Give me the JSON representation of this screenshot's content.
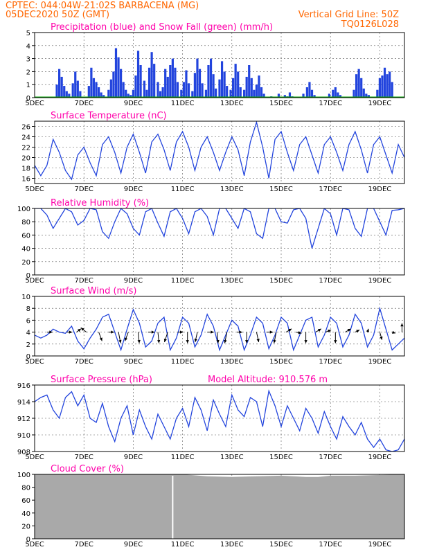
{
  "header": {
    "line1": "CPTEC:   044:04W-21:02S   BARBACENA (MG)",
    "line2": "05DEC2020 50Z (GMT)",
    "grid_note": "Vertical Grid Line: 50Z",
    "code": "TQ0126L028",
    "color": "#ff6600"
  },
  "colors": {
    "title": "#ff00aa",
    "line": "#2244dd",
    "precip": "#2244dd",
    "snow": "#00aa00",
    "cloud": "#a9a9a9",
    "wind_arrow": "#000000"
  },
  "x_ticks": [
    "5DEC",
    "7DEC",
    "9DEC",
    "11DEC",
    "13DEC",
    "15DEC",
    "17DEC",
    "19DEC"
  ],
  "panels": {
    "precip": {
      "title": "Precipitation (blue) and Snow Fall (green) (mm/h)",
      "yticks": [
        "0",
        "1",
        "2",
        "3",
        "4",
        "5"
      ]
    },
    "temp": {
      "title": "Surface Temperature (nC)",
      "yticks": [
        "16",
        "18",
        "20",
        "22",
        "24",
        "26"
      ]
    },
    "rh": {
      "title": "Relative Humidity (%)",
      "yticks": [
        "0",
        "20",
        "40",
        "60",
        "80",
        "100"
      ]
    },
    "wind": {
      "title": "Surface Wind (m/s)",
      "yticks": [
        "0",
        "2",
        "4",
        "6",
        "8",
        "10"
      ]
    },
    "pressure": {
      "title": "Surface Pressure (hPa)",
      "subtitle": "Model Altitude: 910.576 m",
      "yticks": [
        "908",
        "910",
        "912",
        "914",
        "916"
      ]
    },
    "cloud": {
      "title": "Cloud Cover (%)",
      "yticks": [
        "0",
        "20",
        "40",
        "60",
        "80",
        "100"
      ]
    }
  },
  "chart_data": [
    {
      "type": "bar",
      "title": "Precipitation (blue) and Snow Fall (green) (mm/h)",
      "x_unit": "days since 05DEC2020 00Z",
      "ylim": [
        0,
        5
      ],
      "series": [
        {
          "name": "Precipitation",
          "x": [
            0.9,
            1.0,
            1.1,
            1.2,
            1.3,
            1.4,
            1.55,
            1.65,
            1.75,
            1.85,
            2.2,
            2.3,
            2.4,
            2.5,
            2.6,
            2.7,
            2.8,
            3.0,
            3.1,
            3.2,
            3.3,
            3.4,
            3.5,
            3.6,
            3.7,
            3.8,
            3.9,
            4.0,
            4.1,
            4.2,
            4.3,
            4.45,
            4.55,
            4.65,
            4.75,
            4.85,
            5.0,
            5.1,
            5.2,
            5.3,
            5.4,
            5.5,
            5.6,
            5.7,
            5.8,
            5.95,
            6.05,
            6.15,
            6.25,
            6.4,
            6.5,
            6.6,
            6.7,
            6.8,
            6.95,
            7.05,
            7.15,
            7.25,
            7.35,
            7.5,
            7.6,
            7.7,
            7.8,
            7.95,
            8.05,
            8.15,
            8.25,
            8.35,
            8.5,
            8.6,
            8.7,
            8.8,
            8.9,
            9.0,
            9.1,
            9.2,
            9.3,
            9.6,
            9.9,
            10.15,
            10.25,
            10.35,
            10.45,
            10.9,
            11.05,
            11.15,
            11.25,
            11.35,
            11.95,
            12.1,
            12.2,
            12.3,
            12.4,
            12.95,
            13.05,
            13.15,
            13.25,
            13.35,
            13.45,
            13.55,
            13.9,
            14.0,
            14.1,
            14.2,
            14.3,
            14.4,
            14.5
          ],
          "values": [
            1.0,
            2.2,
            1.6,
            0.9,
            0.5,
            0.3,
            1.1,
            2.0,
            1.3,
            0.5,
            0.9,
            2.3,
            1.5,
            1.2,
            0.8,
            0.4,
            0.2,
            0.6,
            1.4,
            2.0,
            3.8,
            3.1,
            2.2,
            1.2,
            0.6,
            0.3,
            0.2,
            0.6,
            1.7,
            3.6,
            2.5,
            1.3,
            0.6,
            2.3,
            3.5,
            2.6,
            1.2,
            0.5,
            0.8,
            2.2,
            1.6,
            2.5,
            3.0,
            2.3,
            1.2,
            0.6,
            1.2,
            2.1,
            1.1,
            0.5,
            1.9,
            3.0,
            2.2,
            1.1,
            0.6,
            2.5,
            3.0,
            1.8,
            0.7,
            1.4,
            2.8,
            2.0,
            0.9,
            0.6,
            1.5,
            2.6,
            2.0,
            0.8,
            0.6,
            1.6,
            2.5,
            1.5,
            0.6,
            1.0,
            1.7,
            0.8,
            0.3,
            0.1,
            0.3,
            0.2,
            0.1,
            0.4,
            0.1,
            0.3,
            0.8,
            1.2,
            0.6,
            0.2,
            0.3,
            0.6,
            0.8,
            0.4,
            0.2,
            0.6,
            1.8,
            2.2,
            1.5,
            0.7,
            0.3,
            0.2,
            0.6,
            1.5,
            1.7,
            2.3,
            1.8,
            2.0,
            1.2
          ]
        },
        {
          "name": "Snow Fall",
          "x": [
            0.0,
            15.0
          ],
          "values": [
            0,
            0
          ]
        }
      ]
    },
    {
      "type": "line",
      "title": "Surface Temperature (nC)",
      "ylim": [
        15,
        27
      ],
      "series": [
        {
          "name": "Temperature",
          "x": [
            0,
            0.25,
            0.5,
            0.75,
            1.0,
            1.25,
            1.5,
            1.75,
            2.0,
            2.25,
            2.5,
            2.75,
            3.0,
            3.25,
            3.5,
            3.75,
            4.0,
            4.25,
            4.5,
            4.75,
            5.0,
            5.25,
            5.5,
            5.75,
            6.0,
            6.25,
            6.5,
            6.75,
            7.0,
            7.25,
            7.5,
            7.75,
            8.0,
            8.25,
            8.5,
            8.75,
            9.0,
            9.25,
            9.5,
            9.75,
            10.0,
            10.25,
            10.5,
            10.75,
            11.0,
            11.25,
            11.5,
            11.75,
            12.0,
            12.25,
            12.5,
            12.75,
            13.0,
            13.25,
            13.5,
            13.75,
            14.0,
            14.25,
            14.5,
            14.75,
            15.0
          ],
          "values": [
            18.5,
            16.5,
            18.5,
            23.5,
            21.0,
            17.5,
            15.8,
            20.5,
            22.0,
            19.0,
            16.5,
            22.5,
            24.0,
            21.0,
            17.0,
            22.0,
            24.5,
            21.0,
            17.0,
            23.0,
            24.5,
            21.5,
            17.5,
            23.0,
            25.0,
            22.0,
            17.5,
            22.0,
            24.0,
            21.0,
            17.5,
            21.0,
            24.0,
            21.5,
            16.5,
            23.0,
            26.8,
            22.0,
            16.0,
            23.5,
            25.0,
            21.0,
            17.5,
            22.5,
            24.0,
            20.5,
            17.0,
            22.5,
            24.0,
            21.0,
            17.5,
            22.5,
            25.0,
            21.5,
            17.0,
            22.5,
            24.0,
            20.5,
            17.0,
            22.5,
            20.0
          ]
        }
      ]
    },
    {
      "type": "line",
      "title": "Relative Humidity (%)",
      "ylim": [
        0,
        100
      ],
      "series": [
        {
          "name": "Relative Humidity",
          "x": [
            0,
            0.25,
            0.5,
            0.75,
            1.0,
            1.25,
            1.5,
            1.75,
            2.0,
            2.25,
            2.5,
            2.75,
            3.0,
            3.25,
            3.5,
            3.75,
            4.0,
            4.25,
            4.5,
            4.75,
            5.0,
            5.25,
            5.5,
            5.75,
            6.0,
            6.25,
            6.5,
            6.75,
            7.0,
            7.25,
            7.5,
            7.75,
            8.0,
            8.25,
            8.5,
            8.75,
            9.0,
            9.25,
            9.5,
            9.75,
            10.0,
            10.25,
            10.5,
            10.75,
            11.0,
            11.25,
            11.5,
            11.75,
            12.0,
            12.25,
            12.5,
            12.75,
            13.0,
            13.25,
            13.5,
            13.75,
            14.0,
            14.25,
            14.5,
            14.75,
            15.0
          ],
          "values": [
            100,
            100,
            90,
            70,
            85,
            100,
            95,
            75,
            82,
            100,
            98,
            65,
            55,
            80,
            100,
            92,
            70,
            60,
            95,
            100,
            78,
            58,
            95,
            100,
            85,
            62,
            95,
            100,
            88,
            60,
            100,
            100,
            85,
            70,
            100,
            95,
            62,
            55,
            100,
            100,
            80,
            78,
            98,
            100,
            85,
            40,
            70,
            100,
            92,
            60,
            100,
            98,
            70,
            58,
            100,
            100,
            80,
            60,
            97,
            98,
            100
          ]
        }
      ]
    },
    {
      "type": "line",
      "title": "Surface Wind (m/s)",
      "ylim": [
        0,
        10
      ],
      "series": [
        {
          "name": "Wind speed",
          "x": [
            0,
            0.25,
            0.5,
            0.75,
            1.0,
            1.25,
            1.5,
            1.75,
            2.0,
            2.25,
            2.5,
            2.75,
            3.0,
            3.25,
            3.5,
            3.75,
            4.0,
            4.25,
            4.5,
            4.75,
            5.0,
            5.25,
            5.5,
            5.75,
            6.0,
            6.25,
            6.5,
            6.75,
            7.0,
            7.25,
            7.5,
            7.75,
            8.0,
            8.25,
            8.5,
            8.75,
            9.0,
            9.25,
            9.5,
            9.75,
            10.0,
            10.25,
            10.5,
            10.75,
            11.0,
            11.25,
            11.5,
            11.75,
            12.0,
            12.25,
            12.5,
            12.75,
            13.0,
            13.25,
            13.5,
            13.75,
            14.0,
            14.25,
            14.5,
            14.75,
            15.0
          ],
          "values": [
            3.5,
            3.0,
            3.5,
            4.5,
            4.0,
            3.8,
            5.0,
            2.5,
            1.2,
            3.0,
            4.5,
            6.5,
            7.0,
            4.0,
            1.0,
            4.5,
            7.8,
            5.5,
            1.5,
            2.5,
            5.5,
            6.5,
            1.0,
            3.0,
            6.5,
            5.5,
            1.5,
            3.5,
            7.0,
            5.0,
            1.0,
            3.5,
            6.0,
            5.0,
            1.0,
            3.5,
            6.5,
            5.5,
            1.2,
            3.5,
            6.5,
            5.5,
            1.0,
            3.5,
            6.0,
            6.5,
            1.5,
            3.5,
            6.5,
            5.5,
            1.5,
            3.5,
            7.0,
            5.5,
            1.5,
            3.5,
            8.0,
            4.5,
            1.0,
            2.0,
            3.0
          ]
        }
      ],
      "wind_vectors": [
        {
          "x": 0.5,
          "u": 0.5,
          "v": 0
        },
        {
          "x": 1.3,
          "u": 0.5,
          "v": 0
        },
        {
          "x": 1.7,
          "u": 0.4,
          "v": 0.3
        },
        {
          "x": 2.1,
          "u": -0.5,
          "v": 0.4
        },
        {
          "x": 2.6,
          "u": 0.3,
          "v": -0.8
        },
        {
          "x": 3.0,
          "u": 0.5,
          "v": 0
        },
        {
          "x": 3.4,
          "u": 0.2,
          "v": -1
        },
        {
          "x": 3.8,
          "u": -0.3,
          "v": -0.8
        },
        {
          "x": 4.2,
          "u": 0.1,
          "v": -1
        },
        {
          "x": 4.6,
          "u": 0.6,
          "v": 0
        },
        {
          "x": 5.0,
          "u": 0.1,
          "v": -1
        },
        {
          "x": 5.4,
          "u": -0.3,
          "v": -0.9
        },
        {
          "x": 5.8,
          "u": 0.5,
          "v": 0
        },
        {
          "x": 6.2,
          "u": 0,
          "v": -1
        },
        {
          "x": 6.6,
          "u": -0.2,
          "v": -0.9
        },
        {
          "x": 7.0,
          "u": 0.6,
          "v": 0
        },
        {
          "x": 7.4,
          "u": 0.1,
          "v": -1
        },
        {
          "x": 7.8,
          "u": -0.2,
          "v": -1
        },
        {
          "x": 8.2,
          "u": 0.5,
          "v": 0
        },
        {
          "x": 8.6,
          "u": 0,
          "v": -1
        },
        {
          "x": 9.0,
          "u": 0.2,
          "v": -0.9
        },
        {
          "x": 9.4,
          "u": 0.6,
          "v": 0
        },
        {
          "x": 9.8,
          "u": -0.2,
          "v": -1
        },
        {
          "x": 10.2,
          "u": 0.5,
          "v": 0.3
        },
        {
          "x": 10.6,
          "u": 0.5,
          "v": -0.1
        },
        {
          "x": 11.0,
          "u": 0,
          "v": -1
        },
        {
          "x": 11.4,
          "u": 0.5,
          "v": 0.3
        },
        {
          "x": 11.8,
          "u": 0.5,
          "v": 0.2
        },
        {
          "x": 12.2,
          "u": 0,
          "v": -1
        },
        {
          "x": 12.6,
          "u": 0.5,
          "v": 0.3
        },
        {
          "x": 13.0,
          "u": 0.4,
          "v": 0.2
        },
        {
          "x": 13.5,
          "u": 0.1,
          "v": 0.3
        },
        {
          "x": 14.0,
          "u": 0.2,
          "v": -0.7
        },
        {
          "x": 14.5,
          "u": 0.3,
          "v": -0.1
        },
        {
          "x": 14.9,
          "u": 0,
          "v": 0.8
        }
      ]
    },
    {
      "type": "line",
      "title": "Surface Pressure (hPa)",
      "ylim": [
        908,
        916
      ],
      "series": [
        {
          "name": "Surface Pressure",
          "x": [
            0,
            0.25,
            0.5,
            0.75,
            1.0,
            1.25,
            1.5,
            1.75,
            2.0,
            2.25,
            2.5,
            2.75,
            3.0,
            3.25,
            3.5,
            3.75,
            4.0,
            4.25,
            4.5,
            4.75,
            5.0,
            5.25,
            5.5,
            5.75,
            6.0,
            6.25,
            6.5,
            6.75,
            7.0,
            7.25,
            7.5,
            7.75,
            8.0,
            8.25,
            8.5,
            8.75,
            9.0,
            9.25,
            9.5,
            9.75,
            10.0,
            10.25,
            10.5,
            10.75,
            11.0,
            11.25,
            11.5,
            11.75,
            12.0,
            12.25,
            12.5,
            12.75,
            13.0,
            13.25,
            13.5,
            13.75,
            14.0,
            14.25,
            14.5,
            14.75,
            15.0
          ],
          "values": [
            914.0,
            914.5,
            914.8,
            913.0,
            912.0,
            914.5,
            915.2,
            913.5,
            914.8,
            912.0,
            911.5,
            913.8,
            911.0,
            909.2,
            912.0,
            913.5,
            910.0,
            913.0,
            911.0,
            909.5,
            912.5,
            911.0,
            909.5,
            912.0,
            913.2,
            911.0,
            914.5,
            913.0,
            910.5,
            914.2,
            912.5,
            911.0,
            914.8,
            913.0,
            912.2,
            914.5,
            914.0,
            911.0,
            915.3,
            913.5,
            911.0,
            913.5,
            912.0,
            910.5,
            913.2,
            912.0,
            910.2,
            912.8,
            911.0,
            909.5,
            912.2,
            911.0,
            910.0,
            911.5,
            909.5,
            908.5,
            909.5,
            908.2,
            908.0,
            908.2,
            909.5
          ]
        }
      ]
    },
    {
      "type": "area",
      "title": "Cloud Cover (%)",
      "ylim": [
        0,
        100
      ],
      "series": [
        {
          "name": "Cloud Cover",
          "x": [
            0,
            2,
            4,
            5.5,
            6.0,
            7.0,
            8.0,
            9.0,
            10.0,
            10.5,
            11.0,
            11.5,
            12.0,
            13.0,
            14.0,
            15.0
          ],
          "values": [
            100,
            100,
            100,
            100,
            100,
            97,
            96,
            97,
            98,
            97,
            96,
            96,
            98,
            98,
            99,
            100
          ]
        }
      ],
      "gap_day": 5.6
    }
  ]
}
